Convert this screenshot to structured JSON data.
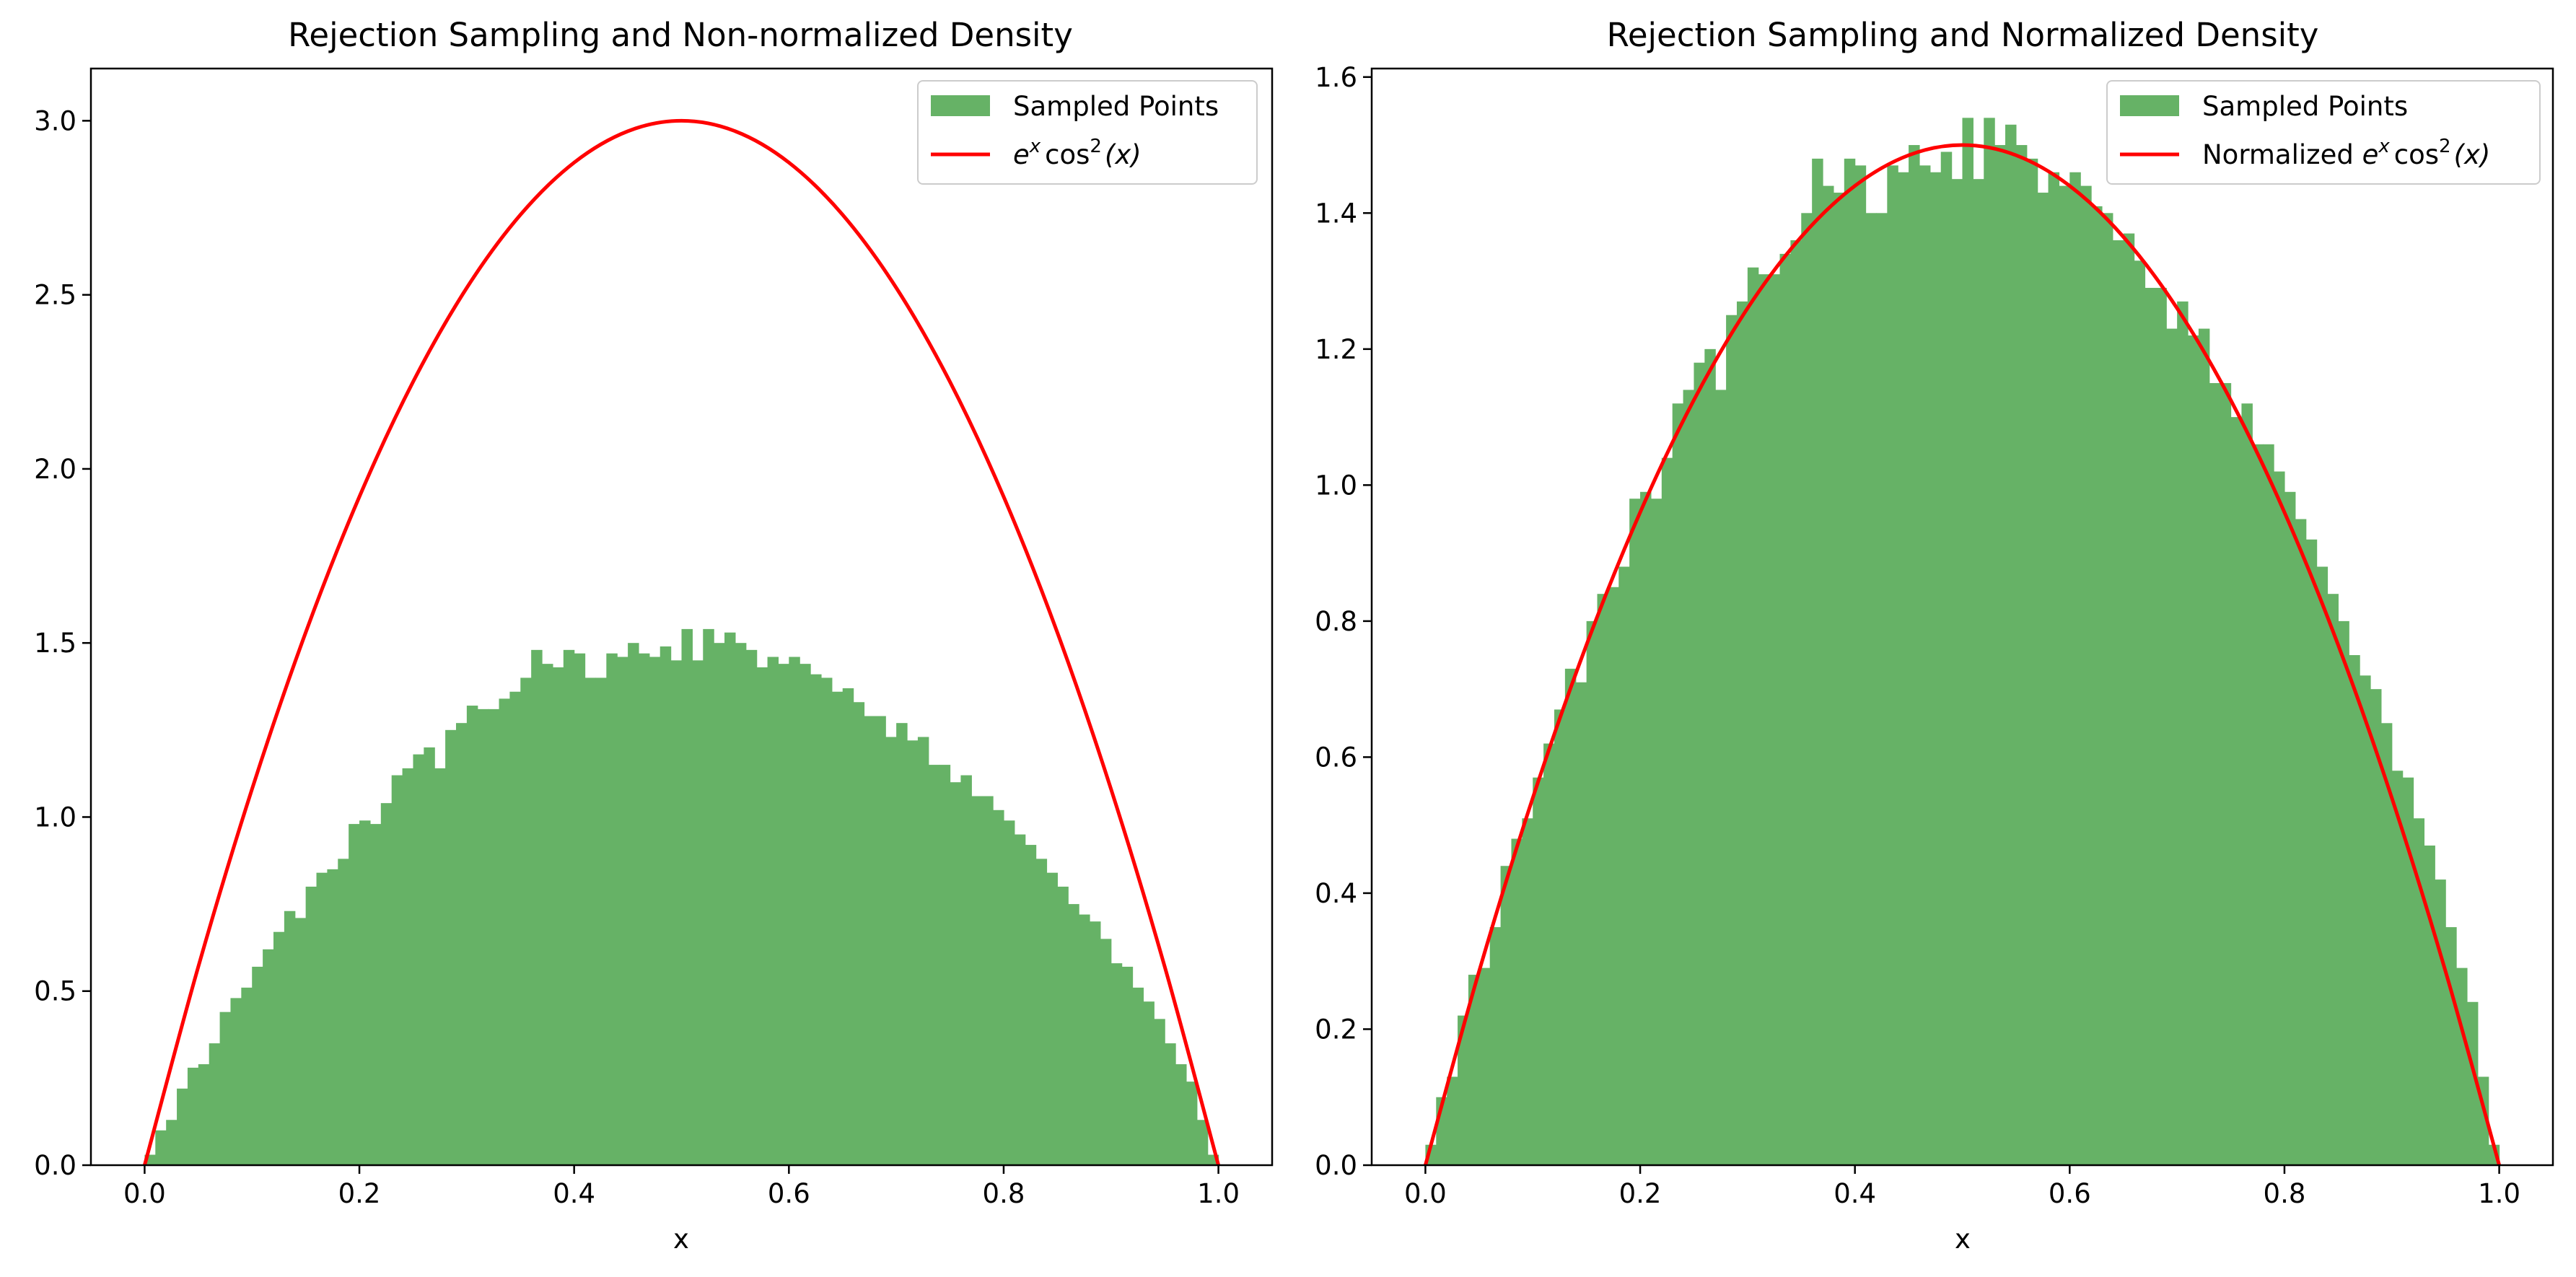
{
  "figure": {
    "bar_color": "#66b266",
    "line_color": "#ff0000"
  },
  "chart_data": [
    {
      "type": "bar",
      "title": "Rejection Sampling and Non-normalized Density",
      "xlabel": "x",
      "ylabel": "",
      "xlim": [
        -0.05,
        1.05
      ],
      "ylim": [
        0,
        3.15
      ],
      "x_ticks": [
        "0.0",
        "0.2",
        "0.4",
        "0.6",
        "0.8",
        "1.0"
      ],
      "y_ticks": [
        "0.0",
        "0.5",
        "1.0",
        "1.5",
        "2.0",
        "2.5",
        "3.0"
      ],
      "grid": false,
      "legend_position": "top-right",
      "histogram": {
        "name": "Sampled Points",
        "bin_range": [
          0,
          1
        ],
        "bin_count": 100,
        "values": [
          0.03,
          0.1,
          0.13,
          0.22,
          0.28,
          0.29,
          0.35,
          0.44,
          0.48,
          0.51,
          0.57,
          0.62,
          0.67,
          0.73,
          0.71,
          0.8,
          0.84,
          0.85,
          0.88,
          0.98,
          0.99,
          0.98,
          1.04,
          1.12,
          1.14,
          1.18,
          1.2,
          1.14,
          1.25,
          1.27,
          1.32,
          1.31,
          1.31,
          1.34,
          1.36,
          1.4,
          1.48,
          1.44,
          1.43,
          1.48,
          1.47,
          1.4,
          1.4,
          1.47,
          1.46,
          1.5,
          1.47,
          1.46,
          1.49,
          1.45,
          1.54,
          1.45,
          1.54,
          1.5,
          1.53,
          1.5,
          1.48,
          1.43,
          1.46,
          1.44,
          1.46,
          1.44,
          1.41,
          1.4,
          1.36,
          1.37,
          1.33,
          1.29,
          1.29,
          1.23,
          1.27,
          1.22,
          1.23,
          1.15,
          1.15,
          1.1,
          1.12,
          1.06,
          1.06,
          1.02,
          0.99,
          0.95,
          0.92,
          0.88,
          0.84,
          0.8,
          0.75,
          0.72,
          0.7,
          0.65,
          0.58,
          0.57,
          0.51,
          0.47,
          0.42,
          0.35,
          0.29,
          0.24,
          0.13,
          0.03
        ]
      },
      "curve": {
        "name": "e^x cos^2(x)",
        "x": [
          0,
          0.05,
          0.1,
          0.15,
          0.2,
          0.25,
          0.3,
          0.35,
          0.4,
          0.45,
          0.5,
          0.55,
          0.6,
          0.65,
          0.7,
          0.75,
          0.8,
          0.85,
          0.9,
          0.95,
          1.0
        ],
        "y": [
          0.0,
          0.57,
          1.08,
          1.53,
          1.92,
          2.25,
          2.52,
          2.73,
          2.88,
          2.97,
          3.0,
          2.97,
          2.88,
          2.73,
          2.52,
          2.25,
          1.92,
          1.53,
          1.08,
          0.57,
          0.0
        ]
      },
      "legend": {
        "bar_label": "Sampled Points",
        "line_prefix": "",
        "line_label_e": "e",
        "line_label_x": "x",
        "line_label_cos": "cos",
        "line_label_sq": "2",
        "line_label_arg": "(x)"
      }
    },
    {
      "type": "bar",
      "title": "Rejection Sampling and Normalized Density",
      "xlabel": "x",
      "ylabel": "",
      "xlim": [
        -0.05,
        1.05
      ],
      "ylim": [
        0,
        1.6125
      ],
      "x_ticks": [
        "0.0",
        "0.2",
        "0.4",
        "0.6",
        "0.8",
        "1.0"
      ],
      "y_ticks": [
        "0.0",
        "0.2",
        "0.4",
        "0.6",
        "0.8",
        "1.0",
        "1.2",
        "1.4",
        "1.6"
      ],
      "grid": false,
      "legend_position": "top-right",
      "histogram": {
        "name": "Sampled Points",
        "bin_range": [
          0,
          1
        ],
        "bin_count": 100,
        "values": [
          0.03,
          0.1,
          0.13,
          0.22,
          0.28,
          0.29,
          0.35,
          0.44,
          0.48,
          0.51,
          0.57,
          0.62,
          0.67,
          0.73,
          0.71,
          0.8,
          0.84,
          0.85,
          0.88,
          0.98,
          0.99,
          0.98,
          1.04,
          1.12,
          1.14,
          1.18,
          1.2,
          1.14,
          1.25,
          1.27,
          1.32,
          1.31,
          1.31,
          1.34,
          1.36,
          1.4,
          1.48,
          1.44,
          1.43,
          1.48,
          1.47,
          1.4,
          1.4,
          1.47,
          1.46,
          1.5,
          1.47,
          1.46,
          1.49,
          1.45,
          1.54,
          1.45,
          1.54,
          1.5,
          1.53,
          1.5,
          1.48,
          1.43,
          1.46,
          1.44,
          1.46,
          1.44,
          1.41,
          1.4,
          1.36,
          1.37,
          1.33,
          1.29,
          1.29,
          1.23,
          1.27,
          1.22,
          1.23,
          1.15,
          1.15,
          1.1,
          1.12,
          1.06,
          1.06,
          1.02,
          0.99,
          0.95,
          0.92,
          0.88,
          0.84,
          0.8,
          0.75,
          0.72,
          0.7,
          0.65,
          0.58,
          0.57,
          0.51,
          0.47,
          0.42,
          0.35,
          0.29,
          0.24,
          0.13,
          0.03
        ]
      },
      "curve": {
        "name": "Normalized e^x cos^2(x)",
        "x": [
          0,
          0.05,
          0.1,
          0.15,
          0.2,
          0.25,
          0.3,
          0.35,
          0.4,
          0.45,
          0.5,
          0.55,
          0.6,
          0.65,
          0.7,
          0.75,
          0.8,
          0.85,
          0.9,
          0.95,
          1.0
        ],
        "y": [
          0.0,
          0.285,
          0.54,
          0.765,
          0.96,
          1.125,
          1.26,
          1.365,
          1.44,
          1.485,
          1.5,
          1.485,
          1.44,
          1.365,
          1.26,
          1.125,
          0.96,
          0.765,
          0.54,
          0.285,
          0.0
        ]
      },
      "legend": {
        "bar_label": "Sampled Points",
        "line_prefix": "Normalized ",
        "line_label_e": "e",
        "line_label_x": "x",
        "line_label_cos": "cos",
        "line_label_sq": "2",
        "line_label_arg": "(x)"
      }
    }
  ]
}
